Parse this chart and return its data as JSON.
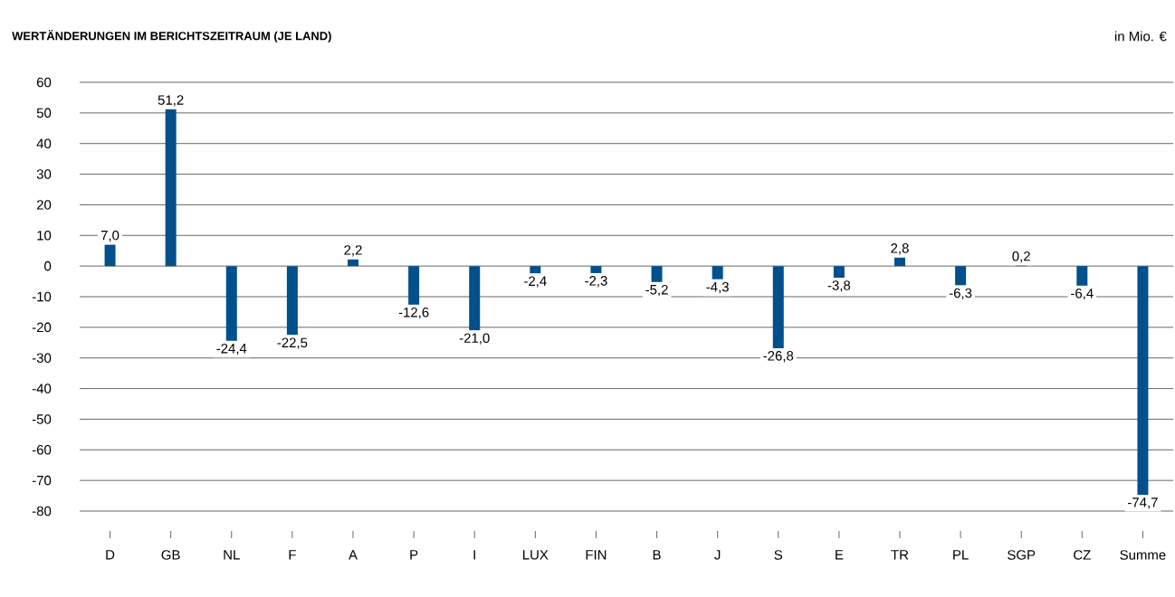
{
  "chart_data": {
    "type": "bar",
    "title": "WERTÄNDERUNGEN IM BERICHTSZEITRAUM (JE LAND)",
    "ylabel": "in Mio. €",
    "categories": [
      "D",
      "GB",
      "NL",
      "F",
      "A",
      "P",
      "I",
      "LUX",
      "FIN",
      "B",
      "J",
      "S",
      "E",
      "TR",
      "PL",
      "SGP",
      "CZ",
      "Summe"
    ],
    "values": [
      7.0,
      51.2,
      -24.4,
      -22.5,
      2.2,
      -12.6,
      -21.0,
      -2.4,
      -2.3,
      -5.2,
      -4.3,
      -26.8,
      -3.8,
      2.8,
      -6.3,
      0.2,
      -6.4,
      -74.7
    ],
    "value_labels": [
      "7,0",
      "51,2",
      "-24,4",
      "-22,5",
      "2,2",
      "-12,6",
      "-21,0",
      "-2,4",
      "-2,3",
      "-5,2",
      "-4,3",
      "-26,8",
      "-3,8",
      "2,8",
      "-6,3",
      "0,2",
      "-6,4",
      "-74,7"
    ],
    "color": "#00508c",
    "ylim": [
      -80,
      60
    ],
    "yticks": [
      -80,
      -70,
      -60,
      -50,
      -40,
      -30,
      -20,
      -10,
      0,
      10,
      20,
      30,
      40,
      50,
      60
    ],
    "grid": "y"
  }
}
